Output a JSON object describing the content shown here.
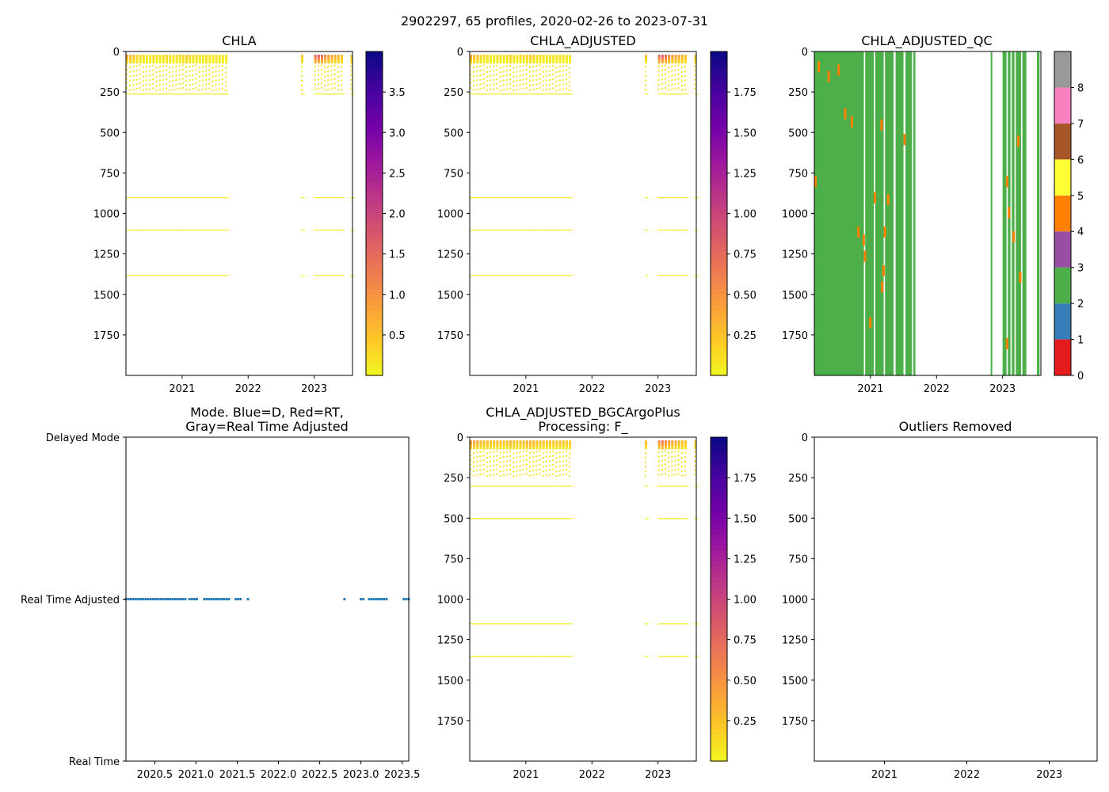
{
  "figure": {
    "suptitle": "2902297, 65 profiles, 2020-02-26 to 2023-07-31"
  },
  "chart_data": [
    {
      "id": "chla",
      "type": "heatmap",
      "title": "CHLA",
      "x_ticks": [
        "2021",
        "2022",
        "2023"
      ],
      "y_ticks": [
        "0",
        "250",
        "500",
        "750",
        "1000",
        "1250",
        "1500",
        "1750"
      ],
      "ylim": [
        2000,
        0
      ],
      "xlim": [
        2020.15,
        2023.58
      ],
      "colormap": "plasma_r",
      "colorbar": {
        "ticks": [
          "0.5",
          "1.0",
          "1.5",
          "2.0",
          "2.5",
          "3.0",
          "3.5"
        ],
        "range": [
          0,
          4
        ]
      },
      "profile_dates": [
        2020.15,
        2020.2,
        2020.25,
        2020.3,
        2020.35,
        2020.4,
        2020.45,
        2020.5,
        2020.55,
        2020.6,
        2020.65,
        2020.7,
        2020.75,
        2020.8,
        2020.85,
        2020.9,
        2020.95,
        2021.0,
        2021.05,
        2021.1,
        2021.15,
        2021.2,
        2021.25,
        2021.3,
        2021.35,
        2021.4,
        2021.45,
        2021.5,
        2021.55,
        2021.6,
        2021.65,
        2022.8,
        2023.0,
        2023.05,
        2023.1,
        2023.15,
        2023.2,
        2023.25,
        2023.3,
        2023.35,
        2023.4,
        2023.55
      ],
      "surface_values": [
        0.8,
        0.6,
        0.5,
        0.4,
        0.3,
        0.3,
        0.2,
        0.2,
        0.3,
        0.2,
        0.2,
        0.3,
        0.4,
        0.3,
        0.2,
        0.3,
        0.3,
        0.4,
        0.5,
        0.4,
        0.3,
        0.3,
        0.2,
        0.2,
        0.3,
        0.2,
        0.2,
        0.3,
        0.2,
        0.2,
        0.2,
        0.5,
        1.6,
        1.8,
        1.6,
        1.2,
        1.0,
        0.9,
        0.8,
        0.7,
        0.6,
        0.5
      ],
      "layer_depths": [
        260,
        900,
        1100,
        1380
      ]
    },
    {
      "id": "chla_adjusted",
      "type": "heatmap",
      "title": "CHLA_ADJUSTED",
      "x_ticks": [
        "2021",
        "2022",
        "2023"
      ],
      "y_ticks": [
        "0",
        "250",
        "500",
        "750",
        "1000",
        "1250",
        "1500",
        "1750"
      ],
      "ylim": [
        2000,
        0
      ],
      "xlim": [
        2020.15,
        2023.58
      ],
      "colormap": "plasma_r",
      "colorbar": {
        "ticks": [
          "0.25",
          "0.50",
          "0.75",
          "1.00",
          "1.25",
          "1.50",
          "1.75"
        ],
        "range": [
          0,
          2
        ]
      },
      "profile_dates": [
        2020.15,
        2020.2,
        2020.25,
        2020.3,
        2020.35,
        2020.4,
        2020.45,
        2020.5,
        2020.55,
        2020.6,
        2020.65,
        2020.7,
        2020.75,
        2020.8,
        2020.85,
        2020.9,
        2020.95,
        2021.0,
        2021.05,
        2021.1,
        2021.15,
        2021.2,
        2021.25,
        2021.3,
        2021.35,
        2021.4,
        2021.45,
        2021.5,
        2021.55,
        2021.6,
        2021.65,
        2022.8,
        2023.0,
        2023.05,
        2023.1,
        2023.15,
        2023.2,
        2023.25,
        2023.3,
        2023.35,
        2023.4,
        2023.55
      ],
      "surface_values": [
        0.4,
        0.3,
        0.25,
        0.2,
        0.15,
        0.15,
        0.1,
        0.1,
        0.15,
        0.1,
        0.1,
        0.15,
        0.2,
        0.15,
        0.1,
        0.15,
        0.15,
        0.2,
        0.25,
        0.2,
        0.15,
        0.15,
        0.1,
        0.1,
        0.15,
        0.1,
        0.1,
        0.15,
        0.1,
        0.1,
        0.1,
        0.25,
        0.8,
        0.9,
        0.8,
        0.6,
        0.5,
        0.45,
        0.4,
        0.35,
        0.3,
        0.25
      ],
      "layer_depths": [
        260,
        900,
        1100,
        1380
      ]
    },
    {
      "id": "chla_adjusted_qc",
      "type": "heatmap",
      "title": "CHLA_ADJUSTED_QC",
      "x_ticks": [
        "2021",
        "2022",
        "2023"
      ],
      "y_ticks": [
        "0",
        "250",
        "500",
        "750",
        "1000",
        "1250",
        "1500",
        "1750"
      ],
      "ylim": [
        2000,
        0
      ],
      "xlim": [
        2020.15,
        2023.58
      ],
      "colorbar": {
        "ticks": [
          "0",
          "1",
          "2",
          "3",
          "4",
          "5",
          "6",
          "7",
          "8"
        ],
        "colors": [
          "#e41a1c",
          "#377eb8",
          "#4daf4a",
          "#984ea3",
          "#ff7f00",
          "#ffff33",
          "#a65628",
          "#f781bf",
          "#999999"
        ]
      },
      "column_ranges": [
        [
          2020.15,
          2020.9
        ],
        [
          2020.92,
          2021.05
        ],
        [
          2021.07,
          2021.2
        ],
        [
          2021.22,
          2021.35
        ],
        [
          2021.38,
          2021.5
        ],
        [
          2021.53,
          2021.63
        ],
        [
          2021.65,
          2021.68
        ],
        [
          2022.82,
          2022.84
        ],
        [
          2023.0,
          2023.06
        ],
        [
          2023.08,
          2023.12
        ],
        [
          2023.14,
          2023.18
        ],
        [
          2023.2,
          2023.28
        ],
        [
          2023.3,
          2023.36
        ],
        [
          2023.52,
          2023.56
        ]
      ],
      "flag_value": 2,
      "flag_4_cells": [
        [
          2020.2,
          60
        ],
        [
          2020.35,
          120
        ],
        [
          2020.5,
          80
        ],
        [
          2020.6,
          350
        ],
        [
          2020.7,
          400
        ],
        [
          2020.15,
          770
        ],
        [
          2020.8,
          1080
        ],
        [
          2020.88,
          1130
        ],
        [
          2020.9,
          1230
        ],
        [
          2020.98,
          1640
        ],
        [
          2021.05,
          870
        ],
        [
          2021.15,
          420
        ],
        [
          2021.18,
          1320
        ],
        [
          2021.16,
          1420
        ],
        [
          2021.2,
          1080
        ],
        [
          2021.25,
          880
        ],
        [
          2021.5,
          510
        ],
        [
          2023.05,
          770
        ],
        [
          2023.08,
          960
        ],
        [
          2023.15,
          1110
        ],
        [
          2023.22,
          520
        ],
        [
          2023.25,
          1360
        ],
        [
          2023.05,
          1770
        ]
      ]
    },
    {
      "id": "mode",
      "type": "scatter",
      "title": "Mode. Blue=D, Red=RT,\nGray=Real Time Adjusted",
      "x_ticks": [
        "2020.5",
        "2021.0",
        "2021.5",
        "2022.0",
        "2022.5",
        "2023.0",
        "2023.5"
      ],
      "y_ticks": [
        "Delayed Mode",
        "Real Time Adjusted",
        "Real Time"
      ],
      "xlim": [
        2020.15,
        2023.58
      ],
      "series": [
        {
          "name": "Real Time Adjusted",
          "color": "#1f77b4",
          "y": "Real Time Adjusted",
          "x": [
            2020.15,
            2020.18,
            2020.21,
            2020.24,
            2020.27,
            2020.3,
            2020.33,
            2020.36,
            2020.39,
            2020.42,
            2020.45,
            2020.48,
            2020.51,
            2020.54,
            2020.57,
            2020.6,
            2020.63,
            2020.66,
            2020.69,
            2020.72,
            2020.75,
            2020.78,
            2020.81,
            2020.84,
            2020.87,
            2020.92,
            2020.95,
            2020.98,
            2021.01,
            2021.1,
            2021.13,
            2021.16,
            2021.19,
            2021.22,
            2021.25,
            2021.28,
            2021.31,
            2021.34,
            2021.37,
            2021.4,
            2021.48,
            2021.51,
            2021.54,
            2021.63,
            2022.8,
            2023.0,
            2023.03,
            2023.1,
            2023.13,
            2023.16,
            2023.19,
            2023.22,
            2023.25,
            2023.28,
            2023.31,
            2023.52,
            2023.55,
            2023.58
          ]
        }
      ]
    },
    {
      "id": "bgcargoplus",
      "type": "heatmap",
      "title": "CHLA_ADJUSTED_BGCArgoPlus\nProcessing: F_",
      "x_ticks": [
        "2021",
        "2022",
        "2023"
      ],
      "y_ticks": [
        "0",
        "250",
        "500",
        "750",
        "1000",
        "1250",
        "1500",
        "1750"
      ],
      "ylim": [
        2000,
        0
      ],
      "xlim": [
        2020.15,
        2023.58
      ],
      "colormap": "plasma_r",
      "colorbar": {
        "ticks": [
          "0.25",
          "0.50",
          "0.75",
          "1.00",
          "1.25",
          "1.50",
          "1.75"
        ],
        "range": [
          0,
          2
        ]
      },
      "profile_dates": [
        2020.15,
        2020.2,
        2020.25,
        2020.3,
        2020.35,
        2020.4,
        2020.45,
        2020.5,
        2020.55,
        2020.6,
        2020.65,
        2020.7,
        2020.75,
        2020.8,
        2020.85,
        2020.9,
        2020.95,
        2021.0,
        2021.05,
        2021.1,
        2021.15,
        2021.2,
        2021.25,
        2021.3,
        2021.35,
        2021.4,
        2021.45,
        2021.5,
        2021.55,
        2021.6,
        2021.65,
        2022.8,
        2023.0,
        2023.05,
        2023.1,
        2023.15,
        2023.2,
        2023.25,
        2023.3,
        2023.35,
        2023.4,
        2023.55
      ],
      "surface_values": [
        0.5,
        0.45,
        0.4,
        0.35,
        0.3,
        0.3,
        0.25,
        0.25,
        0.3,
        0.25,
        0.25,
        0.3,
        0.35,
        0.3,
        0.25,
        0.3,
        0.3,
        0.35,
        0.4,
        0.35,
        0.3,
        0.3,
        0.25,
        0.25,
        0.3,
        0.25,
        0.25,
        0.3,
        0.25,
        0.25,
        0.25,
        0.3,
        0.6,
        0.7,
        0.6,
        0.5,
        0.45,
        0.4,
        0.35,
        0.3,
        0.3,
        0.25
      ],
      "layer_depths": [
        300,
        500,
        1150,
        1350
      ]
    },
    {
      "id": "outliers",
      "type": "heatmap",
      "title": "Outliers Removed",
      "x_ticks": [
        "2021",
        "2022",
        "2023"
      ],
      "y_ticks": [
        "0",
        "250",
        "500",
        "750",
        "1000",
        "1250",
        "1500",
        "1750"
      ],
      "ylim": [
        2000,
        0
      ],
      "xlim": [
        2020.15,
        2023.58
      ]
    }
  ]
}
